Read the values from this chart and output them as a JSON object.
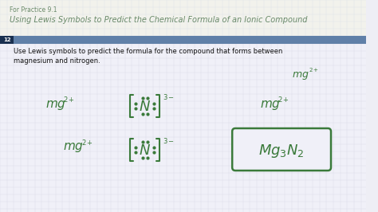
{
  "bg_color": "#eeeef5",
  "title_bg": "#f0f0ea",
  "header_bg": "#6080a8",
  "green": "#3a7a3a",
  "dark_blue": "#1a3050",
  "body_text_color": "#111111",
  "title_color": "#6a8a6a",
  "grid_color": "#d8dce8",
  "panel_bg": "#f0f0f8",
  "title_line1": "For Practice 9.1",
  "title_line2": "Using Lewis Symbols to Predict the Chemical Formula of an Ionic Compound",
  "body_line1": "Use Lewis symbols to predict the formula for the compound that forms between",
  "body_line2": "magnesium and nitrogen.",
  "slide_number": "12"
}
